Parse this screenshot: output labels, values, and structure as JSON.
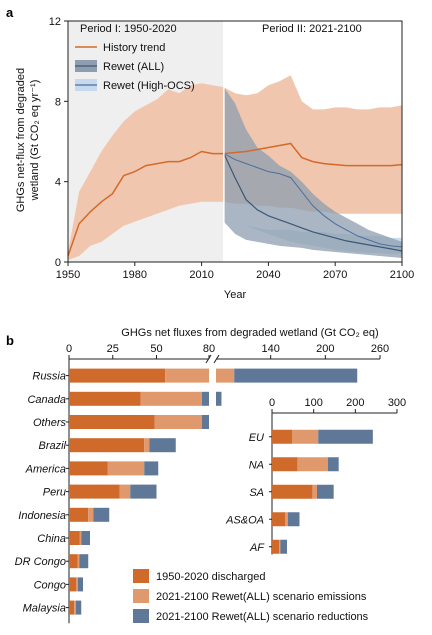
{
  "chart_data": [
    {
      "type": "area",
      "panel": "a",
      "xlabel": "Year",
      "ylabel": "GHGs net-flux from degraded wetland (Gt CO₂ eq yr⁻¹)",
      "ylabel_line1": "GHGs net-flux from degraded",
      "ylabel_line2": "wetland (Gt CO₂ eq yr⁻¹)",
      "xlim": [
        1950,
        2100
      ],
      "ylim": [
        0,
        12
      ],
      "xticks": [
        "1950",
        "1980",
        "2010",
        "2040",
        "2070",
        "2100"
      ],
      "yticks": [
        "0",
        "4",
        "8",
        "12"
      ],
      "period_labels": [
        "Period I: 1950-2020",
        "Period II: 2021-2100"
      ],
      "legend": [
        "History trend",
        "Rewet (ALL)",
        "Rewet (High-OCS)"
      ],
      "legend_position": "top-left",
      "colors": {
        "history": "#d4692a",
        "history_band": "#f0c7ae",
        "rewet_all_band": "#8e9eaf",
        "rewet_all_line": "#3d5778",
        "rewet_high_band": "#c7d9ec",
        "rewet_high_line": "#4d6f99",
        "period1_bg": "#efefef"
      },
      "series": [
        {
          "name": "History trend",
          "x": [
            1950,
            1955,
            1960,
            1965,
            1970,
            1975,
            1980,
            1985,
            1990,
            1995,
            2000,
            2005,
            2010,
            2015,
            2020,
            2025,
            2030,
            2035,
            2040,
            2045,
            2050,
            2055,
            2060,
            2065,
            2070,
            2075,
            2080,
            2085,
            2090,
            2095,
            2100
          ],
          "y": [
            0.3,
            1.9,
            2.5,
            3.0,
            3.4,
            4.3,
            4.5,
            4.8,
            4.9,
            5.0,
            5.0,
            5.2,
            5.5,
            5.4,
            5.4,
            5.45,
            5.5,
            5.6,
            5.7,
            5.8,
            5.9,
            5.2,
            5.0,
            4.9,
            4.85,
            4.8,
            4.8,
            4.8,
            4.8,
            4.8,
            4.85
          ],
          "lower": [
            0.1,
            0.3,
            0.8,
            1.0,
            1.4,
            1.8,
            2.0,
            2.2,
            2.4,
            2.6,
            2.8,
            2.9,
            3.0,
            3.0,
            3.0,
            2.9,
            2.9,
            2.8,
            2.8,
            2.7,
            2.7,
            2.6,
            2.5,
            2.5,
            2.4,
            2.4,
            2.4,
            2.4,
            2.4,
            2.4,
            2.4
          ],
          "upper": [
            0.5,
            3.5,
            4.5,
            5.5,
            6.3,
            7.0,
            7.5,
            7.8,
            8.1,
            8.6,
            8.4,
            8.8,
            8.9,
            8.8,
            8.7,
            8.4,
            8.3,
            8.4,
            8.8,
            9.0,
            9.3,
            8.0,
            7.6,
            7.6,
            7.7,
            7.7,
            7.6,
            7.6,
            7.7,
            7.7,
            7.8
          ]
        },
        {
          "name": "Rewet (ALL)",
          "x": [
            2020,
            2025,
            2030,
            2035,
            2040,
            2045,
            2050,
            2055,
            2060,
            2065,
            2070,
            2075,
            2080,
            2085,
            2090,
            2095,
            2100
          ],
          "y": [
            5.4,
            4.2,
            3.1,
            2.6,
            2.3,
            2.1,
            1.9,
            1.7,
            1.5,
            1.35,
            1.2,
            1.05,
            0.95,
            0.85,
            0.75,
            0.65,
            0.55
          ],
          "lower": [
            2.0,
            1.4,
            1.1,
            1.0,
            0.9,
            0.8,
            0.75,
            0.7,
            0.6,
            0.55,
            0.5,
            0.45,
            0.4,
            0.35,
            0.3,
            0.25,
            0.2
          ],
          "upper": [
            8.7,
            7.9,
            6.6,
            5.7,
            5.3,
            4.8,
            4.5,
            4.0,
            3.4,
            2.9,
            2.5,
            2.2,
            1.9,
            1.6,
            1.4,
            1.2,
            1.0
          ]
        },
        {
          "name": "Rewet (High-OCS)",
          "x": [
            2020,
            2025,
            2030,
            2035,
            2040,
            2045,
            2050,
            2055,
            2060,
            2065,
            2070,
            2075,
            2080,
            2085,
            2090,
            2095,
            2100
          ],
          "y": [
            5.4,
            5.1,
            4.9,
            4.7,
            4.5,
            4.4,
            4.2,
            3.5,
            2.8,
            2.3,
            1.9,
            1.6,
            1.3,
            1.1,
            0.9,
            0.8,
            0.75
          ],
          "lower": [
            2.0,
            1.9,
            1.8,
            1.6,
            1.4,
            1.2,
            1.0,
            0.9,
            0.8,
            0.7,
            0.6,
            0.55,
            0.5,
            0.45,
            0.45,
            0.4,
            0.4
          ],
          "upper": [
            2.0,
            1.9,
            1.8,
            1.7,
            1.6,
            1.6,
            1.6,
            1.5,
            1.5,
            1.5,
            1.4,
            1.4,
            1.3,
            1.3,
            1.3,
            1.2,
            1.2
          ]
        }
      ]
    },
    {
      "type": "bar",
      "panel": "b",
      "stacked": true,
      "orientation": "horizontal",
      "title": "GHGs net fluxes from degraded wetland (Gt CO₂ eq)",
      "axis_break": [
        80,
        80
      ],
      "xticks_left": [
        "0",
        "25",
        "50",
        "80"
      ],
      "xticks_right": [
        "140",
        "200",
        "260"
      ],
      "xticks_region": [
        "0",
        "100",
        "200",
        "300"
      ],
      "legend": [
        "1950-2020 discharged",
        "2021-2100 Rewet(ALL) scenario emissions",
        "2021-2100 Rewet(ALL) scenario reductions"
      ],
      "legend_position": "bottom-right",
      "colors": [
        "#cf6a2a",
        "#e0996c",
        "#5f7898"
      ],
      "countries": [
        {
          "name": "Russia",
          "values": [
            55,
            45,
            135
          ]
        },
        {
          "name": "Canada",
          "values": [
            41,
            35,
            10
          ]
        },
        {
          "name": "Others",
          "values": [
            49,
            27,
            4
          ]
        },
        {
          "name": "Brazil",
          "values": [
            43,
            3,
            15
          ]
        },
        {
          "name": "America",
          "values": [
            22,
            21,
            8
          ]
        },
        {
          "name": "Peru",
          "values": [
            29,
            6,
            15
          ]
        },
        {
          "name": "Indonesia",
          "values": [
            11,
            3,
            9
          ]
        },
        {
          "name": "China",
          "values": [
            6,
            1,
            5
          ]
        },
        {
          "name": "DR Congo",
          "values": [
            5,
            1,
            5
          ]
        },
        {
          "name": "Congo",
          "values": [
            4,
            1,
            3
          ]
        },
        {
          "name": "Malaysia",
          "values": [
            3,
            1,
            3
          ]
        }
      ],
      "regions": [
        {
          "name": "EU",
          "values": [
            48,
            63,
            131
          ]
        },
        {
          "name": "NA",
          "values": [
            61,
            73,
            26
          ]
        },
        {
          "name": "SA",
          "values": [
            97,
            11,
            40
          ]
        },
        {
          "name": "AS&OA",
          "values": [
            32,
            6,
            28
          ]
        },
        {
          "name": "AF",
          "values": [
            17,
            3,
            16
          ]
        }
      ]
    }
  ]
}
